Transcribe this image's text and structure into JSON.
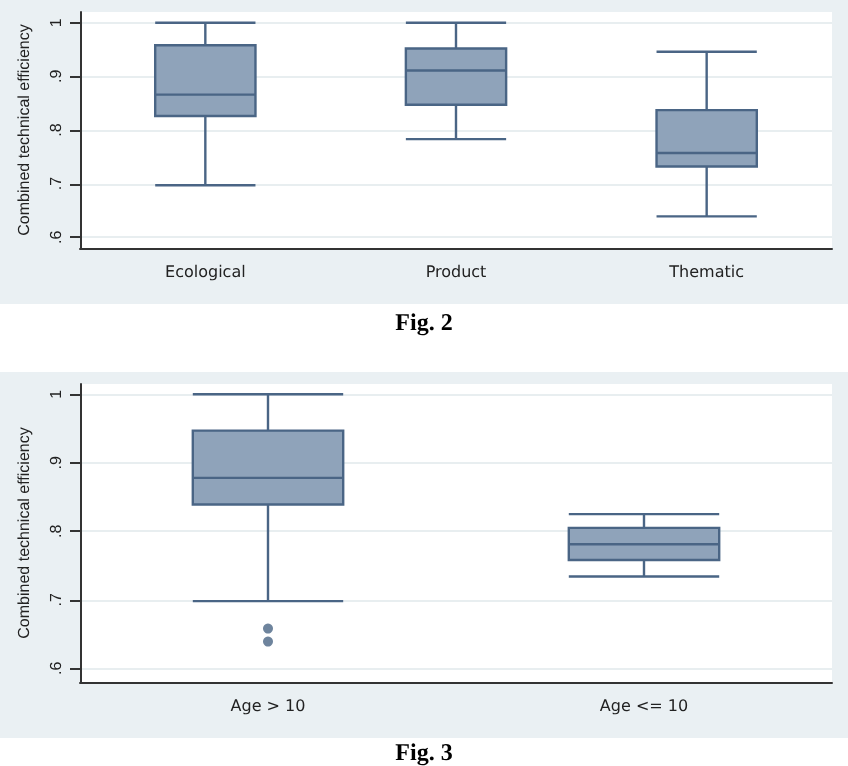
{
  "chart_data": [
    {
      "type": "box",
      "categories": [
        "Ecological",
        "Product",
        "Thematic"
      ],
      "ylabel": "Combined technical efficiency",
      "ylim": [
        0.58,
        1.02
      ],
      "yticks": [
        {
          "value": 0.6,
          "label": ".6"
        },
        {
          "value": 0.7,
          "label": ".7"
        },
        {
          "value": 0.8,
          "label": ".8"
        },
        {
          "value": 0.9,
          "label": ".9"
        },
        {
          "value": 1,
          "label": "1"
        }
      ],
      "grid": "y",
      "annotations": [
        "Fig. 2"
      ],
      "series": [
        {
          "color": "#8fa3ba",
          "boxes": [
            {
              "low": 0.697,
              "q1": 0.826,
              "median": 0.866,
              "q3": 0.958,
              "high": 1
            },
            {
              "low": 0.783,
              "q1": 0.847,
              "median": 0.911,
              "q3": 0.952,
              "high": 1
            },
            {
              "low": 0.639,
              "q1": 0.732,
              "median": 0.757,
              "q3": 0.837,
              "high": 0.946
            }
          ]
        }
      ]
    },
    {
      "type": "box",
      "categories": [
        "Age > 10",
        "Age <= 10"
      ],
      "ylabel": "Combined technical efficiency",
      "ylim": [
        0.58,
        1.015
      ],
      "yticks": [
        {
          "value": 0.6,
          "label": ".6"
        },
        {
          "value": 0.7,
          "label": ".7"
        },
        {
          "value": 0.8,
          "label": ".8"
        },
        {
          "value": 0.9,
          "label": ".9"
        },
        {
          "value": 1,
          "label": "1"
        }
      ],
      "grid": "y",
      "annotations": [
        "Fig. 3"
      ],
      "series": [
        {
          "color": "#8fa3ba",
          "boxes": [
            {
              "low": 0.698,
              "q1": 0.839,
              "median": 0.878,
              "q3": 0.947,
              "high": 1,
              "outliers": [
                0.658,
                0.639
              ]
            },
            {
              "low": 0.734,
              "q1": 0.758,
              "median": 0.781,
              "q3": 0.805,
              "high": 0.825
            }
          ]
        }
      ]
    }
  ]
}
